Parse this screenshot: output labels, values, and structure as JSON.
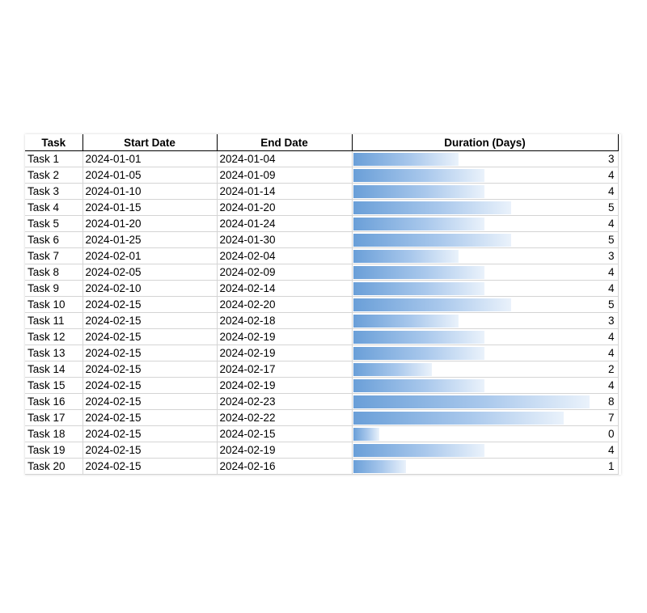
{
  "headers": [
    "Task",
    "Start Date",
    "End Date",
    "Duration (Days)"
  ],
  "rows": [
    {
      "task": "Task 1",
      "start": "2024-01-01",
      "end": "2024-01-04",
      "duration": 3
    },
    {
      "task": "Task 2",
      "start": "2024-01-05",
      "end": "2024-01-09",
      "duration": 4
    },
    {
      "task": "Task 3",
      "start": "2024-01-10",
      "end": "2024-01-14",
      "duration": 4
    },
    {
      "task": "Task 4",
      "start": "2024-01-15",
      "end": "2024-01-20",
      "duration": 5
    },
    {
      "task": "Task 5",
      "start": "2024-01-20",
      "end": "2024-01-24",
      "duration": 4
    },
    {
      "task": "Task 6",
      "start": "2024-01-25",
      "end": "2024-01-30",
      "duration": 5
    },
    {
      "task": "Task 7",
      "start": "2024-02-01",
      "end": "2024-02-04",
      "duration": 3
    },
    {
      "task": "Task 8",
      "start": "2024-02-05",
      "end": "2024-02-09",
      "duration": 4
    },
    {
      "task": "Task 9",
      "start": "2024-02-10",
      "end": "2024-02-14",
      "duration": 4
    },
    {
      "task": "Task 10",
      "start": "2024-02-15",
      "end": "2024-02-20",
      "duration": 5
    },
    {
      "task": "Task 11",
      "start": "2024-02-15",
      "end": "2024-02-18",
      "duration": 3
    },
    {
      "task": "Task 12",
      "start": "2024-02-15",
      "end": "2024-02-19",
      "duration": 4
    },
    {
      "task": "Task 13",
      "start": "2024-02-15",
      "end": "2024-02-19",
      "duration": 4
    },
    {
      "task": "Task 14",
      "start": "2024-02-15",
      "end": "2024-02-17",
      "duration": 2
    },
    {
      "task": "Task 15",
      "start": "2024-02-15",
      "end": "2024-02-19",
      "duration": 4
    },
    {
      "task": "Task 16",
      "start": "2024-02-15",
      "end": "2024-02-23",
      "duration": 8
    },
    {
      "task": "Task 17",
      "start": "2024-02-15",
      "end": "2024-02-22",
      "duration": 7
    },
    {
      "task": "Task 18",
      "start": "2024-02-15",
      "end": "2024-02-15",
      "duration": 0
    },
    {
      "task": "Task 19",
      "start": "2024-02-15",
      "end": "2024-02-19",
      "duration": 4
    },
    {
      "task": "Task 20",
      "start": "2024-02-15",
      "end": "2024-02-16",
      "duration": 1
    }
  ],
  "data_bar": {
    "min_value": 0,
    "max_value": 8,
    "color": "#6a9fd8"
  }
}
